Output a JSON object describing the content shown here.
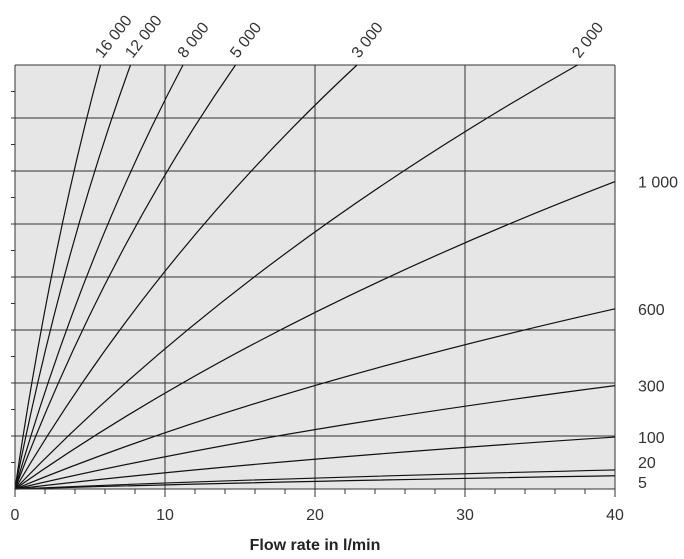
{
  "chart_data": {
    "type": "line",
    "title": "",
    "xlabel": "Flow rate in l/min",
    "ylabel": "",
    "xlim": [
      0,
      40
    ],
    "ylim": [
      0,
      8
    ],
    "x_ticks": [
      0,
      10,
      20,
      30,
      40
    ],
    "x_tick_labels": [
      "0",
      "10",
      "20",
      "30",
      "40"
    ],
    "y_gridlines": [
      1,
      2,
      3,
      4,
      5,
      6,
      7,
      8
    ],
    "y_tick_labels_shown": false,
    "grid": true,
    "legend": "none",
    "series": [
      {
        "name": "16 000",
        "x": [
          0,
          5.7
        ],
        "y": [
          0,
          8
        ]
      },
      {
        "name": "12 000",
        "x": [
          0,
          7.7
        ],
        "y": [
          0,
          8
        ]
      },
      {
        "name": "8 000",
        "x": [
          0,
          11.2
        ],
        "y": [
          0,
          8
        ]
      },
      {
        "name": "5 000",
        "x": [
          0,
          14.7
        ],
        "y": [
          0,
          8
        ]
      },
      {
        "name": "3 000",
        "x": [
          0,
          22.8
        ],
        "y": [
          0,
          8
        ]
      },
      {
        "name": "2 000",
        "x": [
          0,
          37.5
        ],
        "y": [
          0,
          8
        ]
      },
      {
        "name": "1 000",
        "x": [
          0,
          40
        ],
        "y": [
          0,
          5.8
        ]
      },
      {
        "name": "600",
        "x": [
          0,
          40
        ],
        "y": [
          0,
          3.4
        ]
      },
      {
        "name": "300",
        "x": [
          0,
          40
        ],
        "y": [
          0,
          1.95
        ]
      },
      {
        "name": "100",
        "x": [
          0,
          40
        ],
        "y": [
          0,
          0.98
        ]
      },
      {
        "name": "20",
        "x": [
          0,
          40
        ],
        "y": [
          0,
          0.36
        ]
      },
      {
        "name": "5",
        "x": [
          0,
          40
        ],
        "y": [
          0,
          0.25
        ]
      }
    ]
  },
  "colors": {
    "plot_background": "#e6e6e6",
    "line": "#111111",
    "grid": "#333333"
  }
}
